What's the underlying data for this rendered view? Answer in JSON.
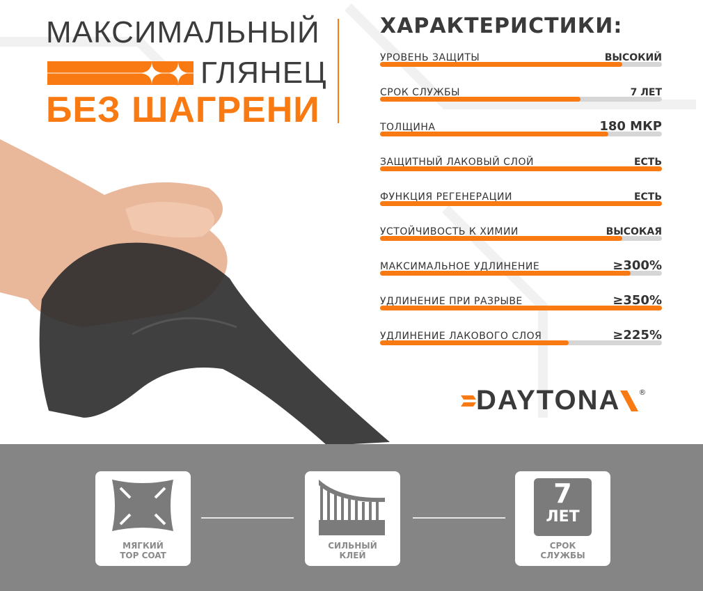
{
  "headline": {
    "line1": "МАКСИМАЛЬНЫЙ",
    "line2": "ГЛЯНЕЦ",
    "line3": "БЕЗ ШАГРЕНИ"
  },
  "specs": {
    "title": "ХАРАКТЕРИСТИКИ:",
    "items": [
      {
        "label": "УРОВЕНЬ ЗАЩИТЫ",
        "value": "ВЫСОКИЙ",
        "level": 0.86
      },
      {
        "label": "СРОК СЛУЖБЫ",
        "value": "7 ЛЕТ",
        "level": 0.71
      },
      {
        "label": "ТОЛЩИНА",
        "value": "180 МКР",
        "level": 0.81
      },
      {
        "label": "ЗАЩИТНЫЙ ЛАКОВЫЙ СЛОЙ",
        "value": "ЕСТЬ",
        "level": 1.0
      },
      {
        "label": "ФУНКЦИЯ РЕГЕНЕРАЦИИ",
        "value": "ЕСТЬ",
        "level": 1.0
      },
      {
        "label": "УСТОЙЧИВОСТЬ К ХИМИИ",
        "value": "ВЫСОКАЯ",
        "level": 0.86
      },
      {
        "label": "МАКСИМАЛЬНОЕ УДЛИНЕНИЕ",
        "value": "≥300%",
        "level": 0.89
      },
      {
        "label": "УДЛИНЕНИЕ ПРИ РАЗРЫВЕ",
        "value": "≥350%",
        "level": 1.0
      },
      {
        "label": "УДЛИНЕНИЕ ЛАКОВОГО СЛОЯ",
        "value": "≥225%",
        "level": 0.67
      }
    ]
  },
  "brand": {
    "name": "DAYTONA",
    "mark": "®"
  },
  "features": [
    {
      "icon": "stretch-arrows-icon",
      "caption1": "МЯГКИЙ",
      "caption2": "TOP COAT"
    },
    {
      "icon": "adhesive-icon",
      "caption1": "СИЛЬНЫЙ",
      "caption2": "КЛЕЙ"
    },
    {
      "icon": "years-badge-icon",
      "number": "7",
      "unit": "ЛЕТ",
      "caption1": "СРОК",
      "caption2": "СЛУЖБЫ"
    }
  ],
  "colors": {
    "accent": "#f97a12",
    "dark": "#3a3a3a",
    "band": "#858585"
  }
}
